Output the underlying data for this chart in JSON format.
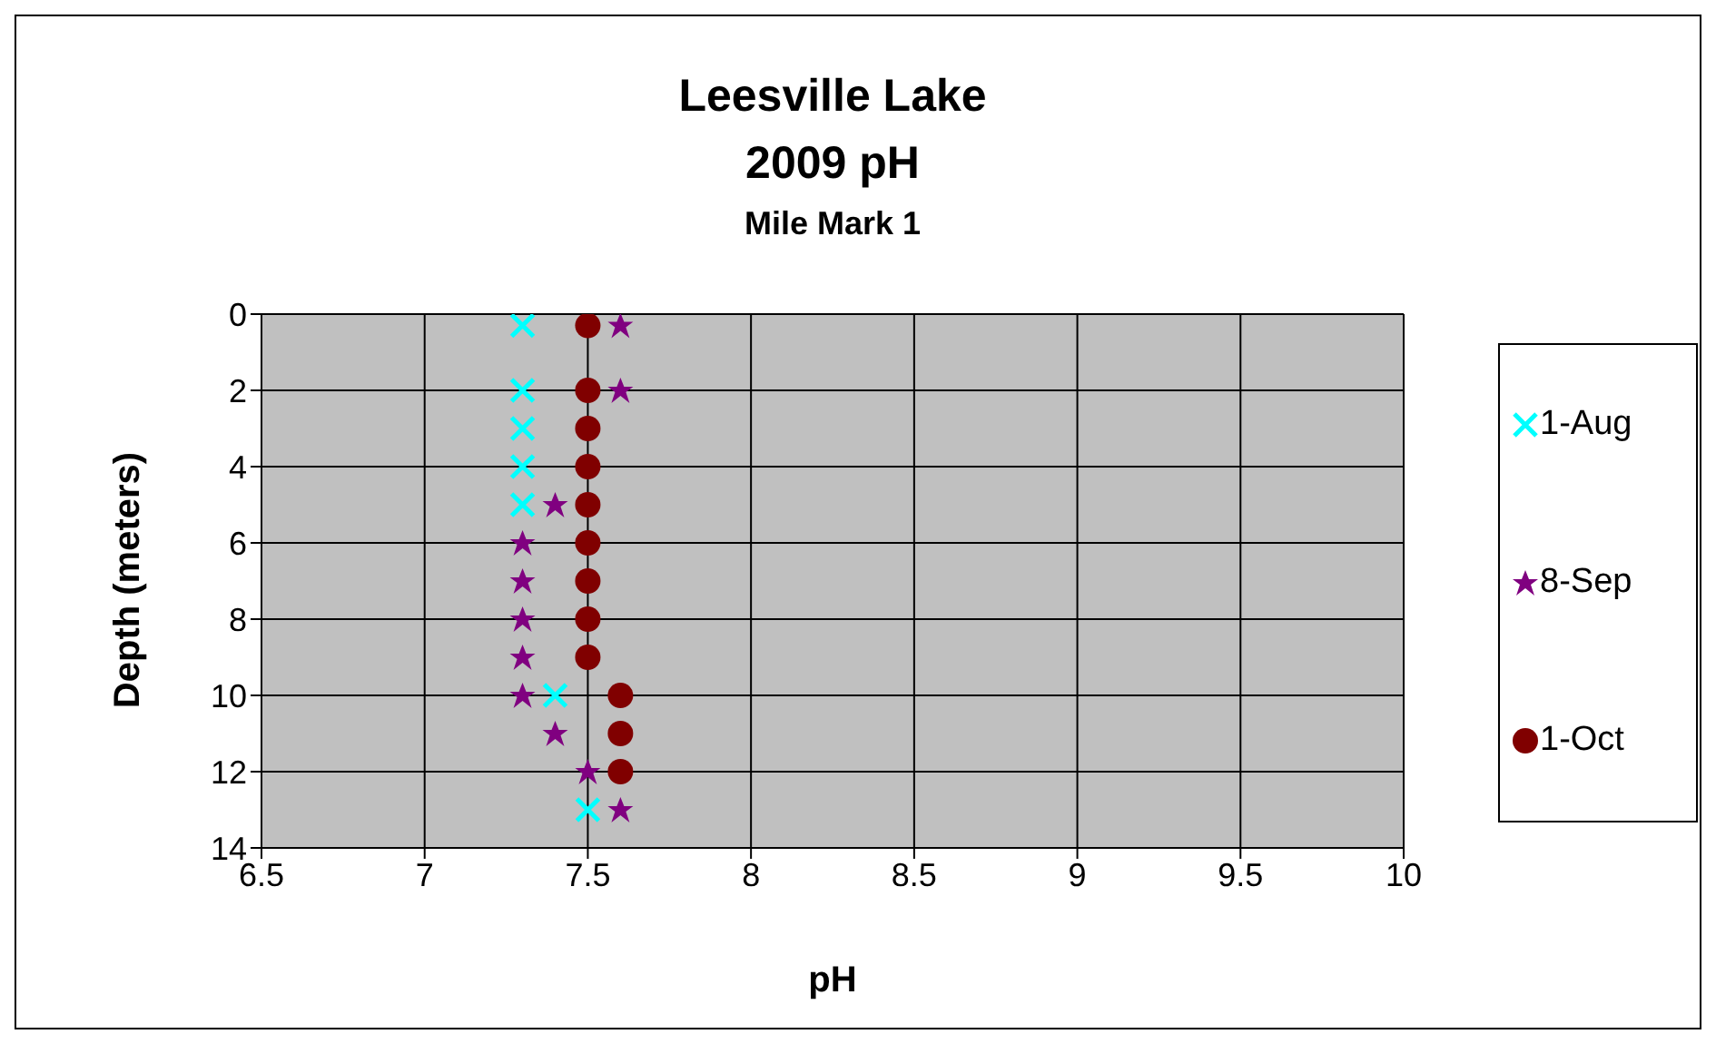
{
  "chart_data": {
    "type": "scatter",
    "title": "Leesville Lake\n2009 pH",
    "subtitle": "Mile Mark 1",
    "xlabel": "pH",
    "ylabel": "Depth (meters)",
    "xlim": [
      6.5,
      10
    ],
    "xticks": [
      6.5,
      7,
      7.5,
      8,
      8.5,
      9,
      9.5,
      10
    ],
    "ylim": [
      14,
      0
    ],
    "yticks": [
      0,
      2,
      4,
      6,
      8,
      10,
      12,
      14
    ],
    "grid": true,
    "legend": "right",
    "series": [
      {
        "name": "1-Aug",
        "color": "#00ffff",
        "marker": "cross",
        "x": [
          7.3,
          7.3,
          7.3,
          7.3,
          7.3,
          7.4,
          7.5
        ],
        "values": [
          0.3,
          2,
          3,
          4,
          5,
          10,
          13
        ]
      },
      {
        "name": "8-Sep",
        "color": "#800080",
        "marker": "star",
        "x": [
          7.6,
          7.6,
          null,
          null,
          7.4,
          7.3,
          7.3,
          7.3,
          7.3,
          7.3,
          7.4,
          7.5,
          7.6
        ],
        "values": [
          0.3,
          2,
          null,
          null,
          5,
          6,
          7,
          8,
          9,
          10,
          11,
          12,
          13
        ]
      },
      {
        "name": "1-Oct",
        "color": "#800000",
        "marker": "circle",
        "x": [
          7.5,
          7.5,
          7.5,
          7.5,
          7.5,
          7.5,
          7.5,
          7.5,
          7.5,
          7.6,
          7.6,
          7.6
        ],
        "values": [
          0.3,
          2,
          3,
          4,
          5,
          6,
          7,
          8,
          9,
          10,
          11,
          12
        ]
      }
    ]
  }
}
